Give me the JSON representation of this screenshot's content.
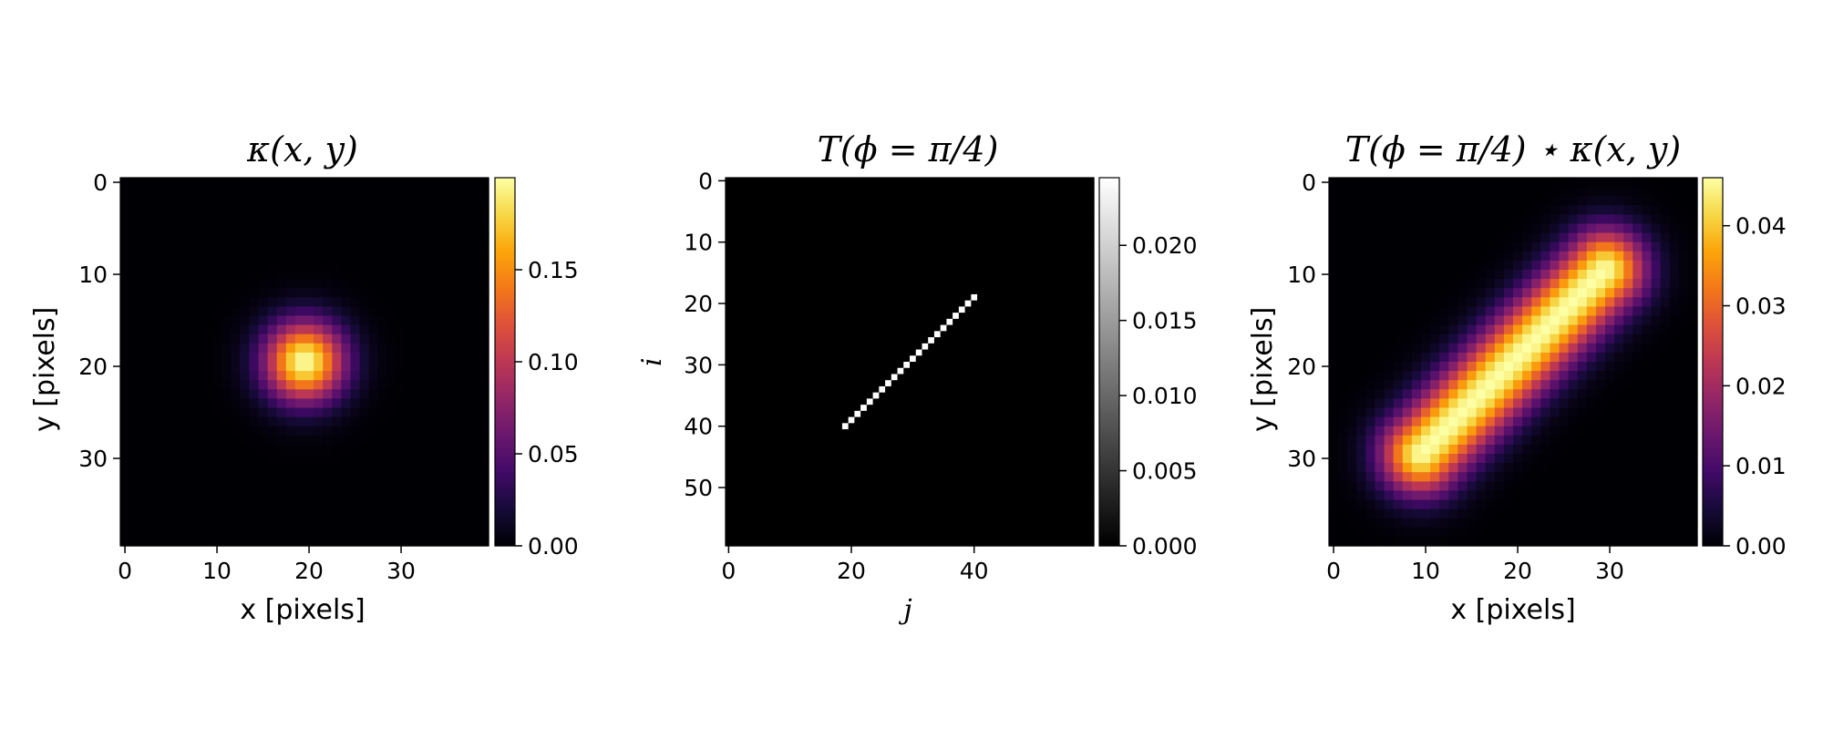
{
  "chart_data": [
    {
      "type": "heatmap",
      "title": "κ(x, y)",
      "xlabel": "x [pixels]",
      "ylabel": "y [pixels]",
      "size": 40,
      "xticks": [
        0,
        10,
        20,
        30
      ],
      "yticks": [
        0,
        10,
        20,
        30
      ],
      "colormap": "inferno",
      "colorbar": {
        "min": 0.0,
        "max": 0.2,
        "ticks": [
          "0.00",
          "0.05",
          "0.10",
          "0.15"
        ]
      },
      "content": {
        "shape": "gaussian",
        "center": [
          19.5,
          19.5
        ],
        "sigma": 3.0,
        "peak": 0.2
      }
    },
    {
      "type": "heatmap",
      "title": "T(ϕ = π/4)",
      "xlabel": "j",
      "ylabel": "i",
      "size": 60,
      "xticks": [
        0,
        20,
        40
      ],
      "yticks": [
        0,
        10,
        20,
        30,
        40,
        50
      ],
      "colormap": "gray",
      "colorbar": {
        "min": 0.0,
        "max": 0.0245,
        "ticks": [
          "0.000",
          "0.005",
          "0.010",
          "0.015",
          "0.020"
        ]
      },
      "content": {
        "shape": "line",
        "from": [
          19,
          40
        ],
        "to": [
          40,
          19
        ],
        "value": 0.0245
      }
    },
    {
      "type": "heatmap",
      "title": "T(ϕ = π/4) ⋆ κ(x, y)",
      "xlabel": "x [pixels]",
      "ylabel": "y [pixels]",
      "size": 40,
      "xticks": [
        0,
        10,
        20,
        30
      ],
      "yticks": [
        0,
        10,
        20,
        30
      ],
      "colormap": "inferno",
      "colorbar": {
        "min": 0.0,
        "max": 0.046,
        "ticks": [
          "0.00",
          "0.01",
          "0.02",
          "0.03",
          "0.04"
        ]
      },
      "content": {
        "shape": "smeared-line",
        "from": [
          9.5,
          29.5
        ],
        "to": [
          29.5,
          9.5
        ],
        "sigma": 3.0,
        "peak": 0.046
      }
    }
  ]
}
